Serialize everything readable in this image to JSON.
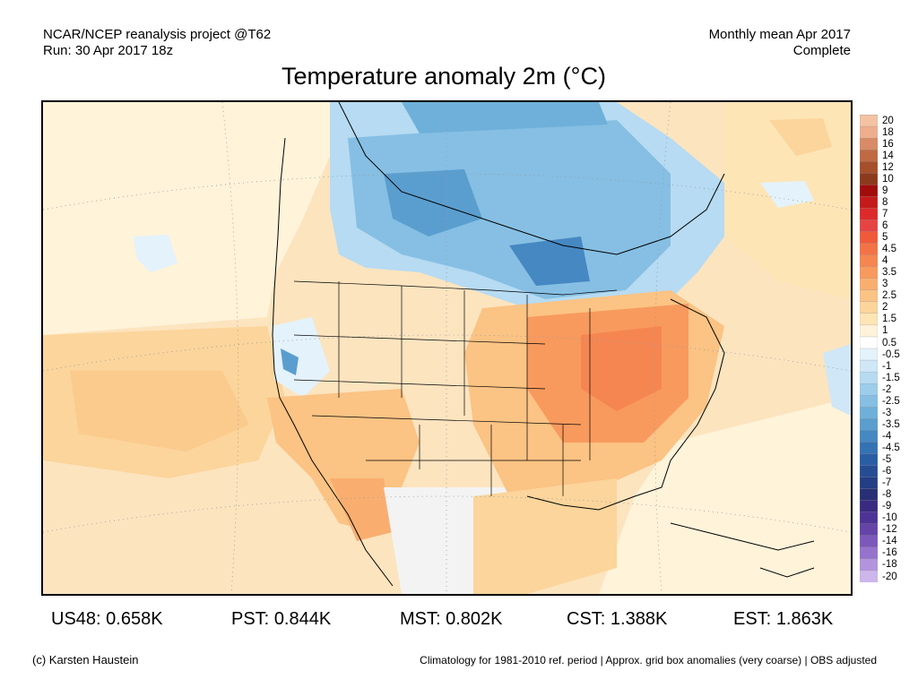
{
  "header": {
    "project": "NCAR/NCEP reanalysis project @T62",
    "run": "Run: 30 Apr 2017 18z",
    "period": "Monthly mean Apr 2017",
    "status": "Complete"
  },
  "title": "Temperature anomaly 2m (°C)",
  "colorbar": {
    "labels": [
      "20",
      "18",
      "16",
      "14",
      "12",
      "10",
      "9",
      "8",
      "7",
      "6",
      "5",
      "4.5",
      "4",
      "3.5",
      "3",
      "2.5",
      "2",
      "1.5",
      "1",
      "0.5",
      "-0.5",
      "-1",
      "-1.5",
      "-2",
      "-2.5",
      "-3",
      "-3.5",
      "-4",
      "-4.5",
      "-5",
      "-6",
      "-7",
      "-8",
      "-9",
      "-10",
      "-12",
      "-14",
      "-16",
      "-18",
      "-20"
    ],
    "colors": [
      "#f4c3a4",
      "#eeae8e",
      "#d98a66",
      "#c06a44",
      "#a64f2a",
      "#8c3a1e",
      "#a20c0c",
      "#c41a1a",
      "#dc2a2a",
      "#e64444",
      "#f05a3a",
      "#f37346",
      "#f58652",
      "#f89a5e",
      "#f9ae70",
      "#fbc384",
      "#fbd59b",
      "#fde5b6",
      "#fff3da",
      "#ffffff",
      "#e4f2fb",
      "#cfe7f7",
      "#b6dbf2",
      "#9ccdeb",
      "#86bfe3",
      "#6fb0da",
      "#5a9ecf",
      "#4588c2",
      "#3472b3",
      "#2a5ea4",
      "#264d94",
      "#233e84",
      "#292f74",
      "#3a2a82",
      "#4e3396",
      "#6543a8",
      "#7d58bb",
      "#9673cd",
      "#b294dd",
      "#cdb6ec"
    ]
  },
  "stats": [
    {
      "label": "US48:",
      "value": "0.658K"
    },
    {
      "label": "PST:",
      "value": "0.844K"
    },
    {
      "label": "MST:",
      "value": "0.802K"
    },
    {
      "label": "CST:",
      "value": "1.388K"
    },
    {
      "label": "EST:",
      "value": "1.863K"
    }
  ],
  "footer": {
    "credit": "(c) Karsten Haustein",
    "note": "Climatology for 1981-2010 ref. period | Approx. grid box anomalies (very coarse) | OBS adjusted"
  }
}
